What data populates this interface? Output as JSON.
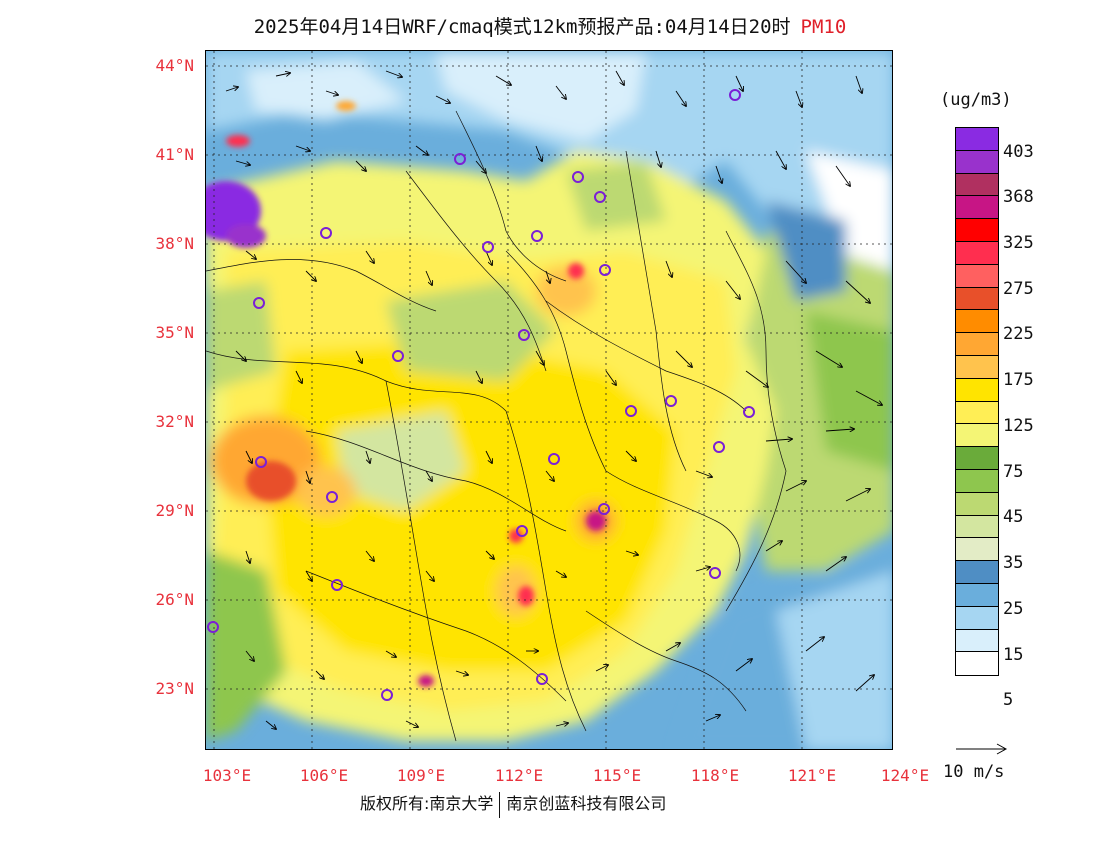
{
  "title": {
    "main": "2025年04月14日WRF/cmaq模式12km预报产品:04月14日20时",
    "pollutant": "PM10"
  },
  "map": {
    "latitude_labels": [
      "44°N",
      "41°N",
      "38°N",
      "35°N",
      "32°N",
      "29°N",
      "26°N",
      "23°N"
    ],
    "longitude_labels": [
      "103°E",
      "106°E",
      "109°E",
      "112°E",
      "115°E",
      "118°E",
      "121°E",
      "124°E"
    ],
    "region": "China"
  },
  "legend": {
    "units": "(ug/m3)",
    "colors": [
      "#8a2be2",
      "#9932cc",
      "#b03060",
      "#c71585",
      "#ff0000",
      "#ff2e4f",
      "#ff6060",
      "#e8502a",
      "#ff8c00",
      "#ffa733",
      "#ffc34d",
      "#ffe400",
      "#ffee55",
      "#f4f575",
      "#6aab3a",
      "#8ec64e",
      "#bcd972",
      "#d3e6a0",
      "#e3ecc6",
      "#4f8ec4",
      "#6aaedc",
      "#a6d6f2",
      "#d9effb",
      "#ffffff"
    ],
    "labels": [
      "403",
      "368",
      "325",
      "275",
      "225",
      "175",
      "125",
      "75",
      "45",
      "35",
      "25",
      "15",
      "5"
    ]
  },
  "wind_reference": {
    "label": "10 m/s"
  },
  "copyright": {
    "left": "版权所有:南京大学",
    "right": "南京创蓝科技有限公司"
  }
}
